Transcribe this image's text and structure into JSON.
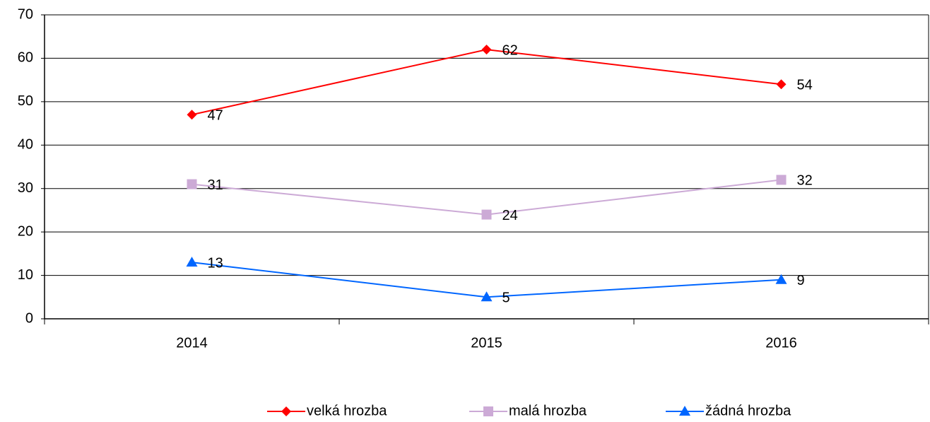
{
  "chart_data": {
    "type": "line",
    "categories": [
      "2014",
      "2015",
      "2016"
    ],
    "series": [
      {
        "name": "velká hrozba",
        "color": "#ff0000",
        "marker": "diamond",
        "values": [
          47,
          62,
          54
        ]
      },
      {
        "name": "malá hrozba",
        "color": "#ccaad6",
        "marker": "square",
        "values": [
          31,
          24,
          32
        ]
      },
      {
        "name": "žádná hrozba",
        "color": "#0066ff",
        "marker": "triangle",
        "values": [
          13,
          5,
          9
        ]
      }
    ],
    "ylim": [
      0,
      70
    ],
    "yticks": [
      0,
      10,
      20,
      30,
      40,
      50,
      60,
      70
    ],
    "grid": true,
    "legend": "bottom"
  }
}
